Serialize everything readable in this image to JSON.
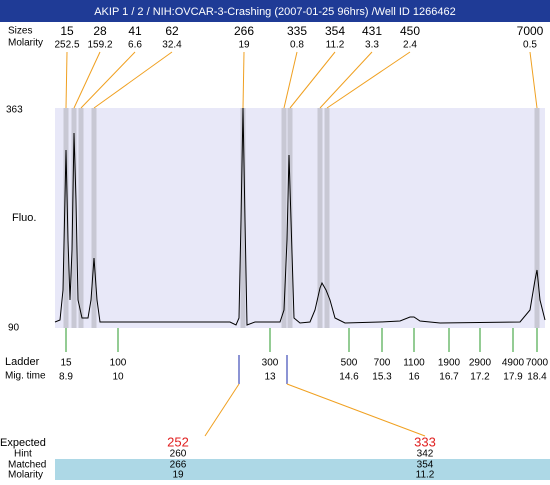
{
  "header": {
    "title": "AKIP 1 / 2 / NIH:OVCAR-3-Crashing (2007-01-25 96hrs) /Well ID 1266462"
  },
  "top": {
    "labels": [
      "Sizes",
      "Molarity"
    ],
    "columns": [
      {
        "size": "15",
        "molarity": "252.5"
      },
      {
        "size": "28",
        "molarity": "159.2"
      },
      {
        "size": "41",
        "molarity": "6.6"
      },
      {
        "size": "62",
        "molarity": "32.4"
      },
      {
        "size": "266",
        "molarity": "19"
      },
      {
        "size": "335",
        "molarity": "0.8"
      },
      {
        "size": "354",
        "molarity": "11.2"
      },
      {
        "size": "431",
        "molarity": "3.3"
      },
      {
        "size": "450",
        "molarity": "2.4"
      },
      {
        "size": "7000",
        "molarity": "0.5"
      }
    ]
  },
  "axis": {
    "ylabel": "Fluo.",
    "ymax": "363",
    "ymin": "90"
  },
  "ladder": {
    "labels": [
      "Ladder",
      "Mig. time"
    ],
    "columns": [
      {
        "size": "15",
        "time": "8.9"
      },
      {
        "size": "100",
        "time": "10"
      },
      {
        "size": "300",
        "time": "13"
      },
      {
        "size": "500",
        "time": "14.6"
      },
      {
        "size": "700",
        "time": "15.3"
      },
      {
        "size": "1100",
        "time": "16"
      },
      {
        "size": "1900",
        "time": "16.7"
      },
      {
        "size": "2900",
        "time": "17.2"
      },
      {
        "size": "4900",
        "time": "17.9"
      },
      {
        "size": "7000",
        "time": "18.4"
      }
    ]
  },
  "expected": {
    "labels": [
      "Expected",
      "Hint",
      "Matched",
      "Molarity"
    ],
    "columns": [
      {
        "expected": "252",
        "hint": "260",
        "matched": "266",
        "molarity": "19"
      },
      {
        "expected": "333",
        "hint": "342",
        "matched": "354",
        "molarity": "11.2"
      }
    ]
  }
}
